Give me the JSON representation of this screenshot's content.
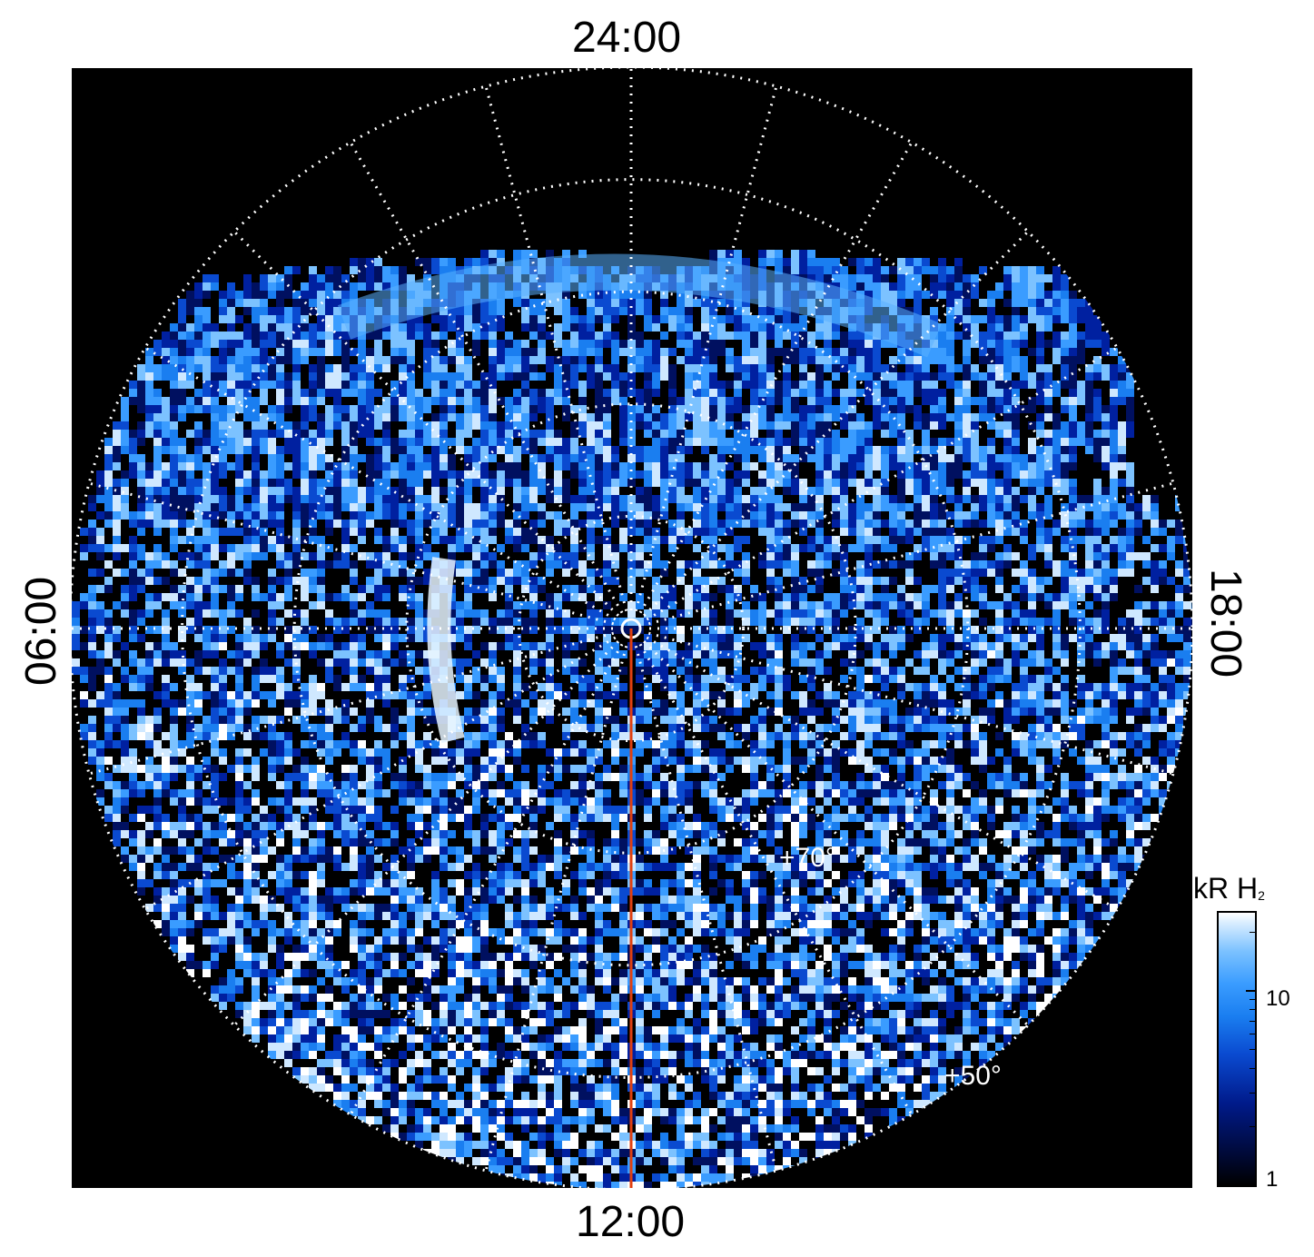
{
  "projection": {
    "local_time_labels": {
      "top": "24:00",
      "bottom": "12:00",
      "left": "06:00",
      "right": "18:00"
    },
    "latitude_labels": {
      "inner": "+70°",
      "outer": "+50°"
    },
    "meridian_line_color": "#e04010",
    "grid_color": "#ffffff"
  },
  "colorbar": {
    "title": "kR H",
    "title_subscript": "2",
    "ticks": [
      "10",
      "1"
    ],
    "scale": "log",
    "colors": [
      "#000000",
      "#001a8a",
      "#1a7ef0",
      "#7cc2ff",
      "#ffffff"
    ]
  }
}
